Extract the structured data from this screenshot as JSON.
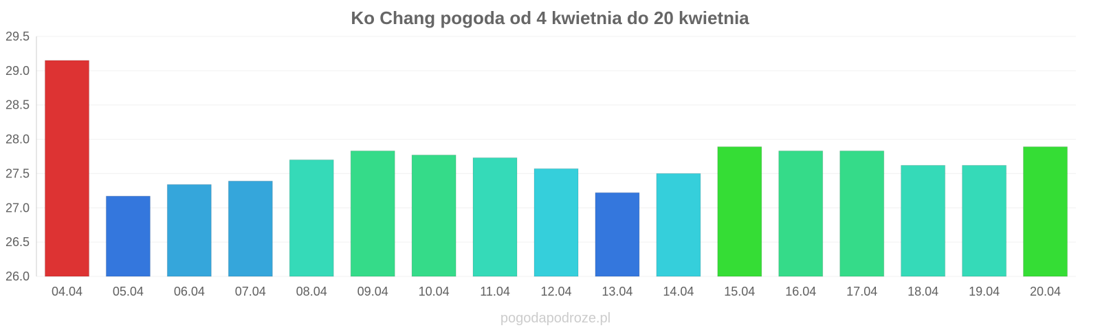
{
  "chart_data": {
    "type": "bar",
    "title": "Ko Chang pogoda od 4 kwietnia do 20 kwietnia",
    "xlabel": "",
    "ylabel": "",
    "ylim": [
      26.0,
      29.5
    ],
    "yticks": [
      "26.0",
      "26.5",
      "27.0",
      "27.5",
      "28.0",
      "28.5",
      "29.0",
      "29.5"
    ],
    "grid": true,
    "categories": [
      "04.04",
      "05.04",
      "06.04",
      "07.04",
      "08.04",
      "09.04",
      "10.04",
      "11.04",
      "12.04",
      "13.04",
      "14.04",
      "15.04",
      "16.04",
      "17.04",
      "18.04",
      "19.04",
      "20.04"
    ],
    "values": [
      29.15,
      27.17,
      27.34,
      27.39,
      27.7,
      27.83,
      27.77,
      27.73,
      27.57,
      27.22,
      27.5,
      27.89,
      27.83,
      27.83,
      27.62,
      27.62,
      27.89
    ],
    "colors": [
      "#dd3333",
      "#3477dd",
      "#35a6db",
      "#35a6db",
      "#35dab8",
      "#35db89",
      "#35db89",
      "#35dab8",
      "#35cfdb",
      "#3477dd",
      "#35cfdb",
      "#35dd35",
      "#35db89",
      "#35db89",
      "#35dab8",
      "#35dab8",
      "#35dd35"
    ]
  },
  "watermark": "pogodapodroze.pl"
}
